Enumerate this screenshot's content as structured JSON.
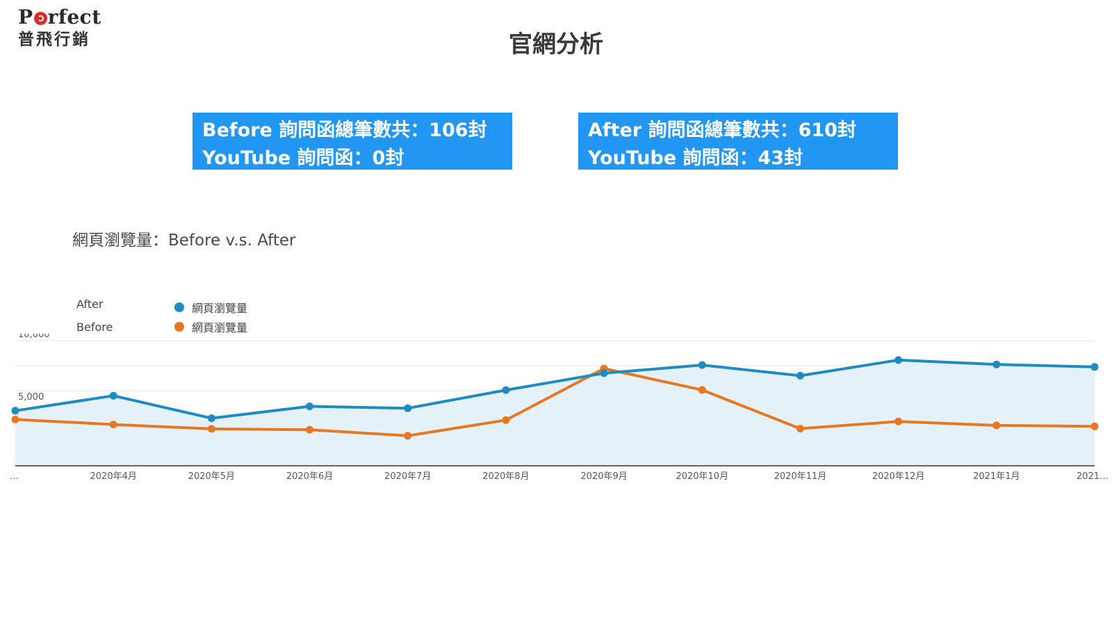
{
  "logo": {
    "word_before_dot": "P",
    "word_after_dot": "rfect",
    "chinese": "普飛行銷"
  },
  "page_title": "官網分析",
  "before_box": {
    "line1": "Before 詢問函總筆數共：106封",
    "line2": "YouTube 詢問函：0封"
  },
  "after_box": {
    "line1": "After 詢問函總筆數共：610封",
    "line2": "YouTube 詢問函：43封"
  },
  "colors": {
    "after": "#1f8bc3",
    "before": "#e87722",
    "box": "#2196f3",
    "area": "#e4f1f8"
  },
  "chart_data": {
    "type": "line",
    "title": "網頁瀏覽量：Before v.s. After",
    "legend": [
      {
        "group": "After",
        "label": "網頁瀏覽量"
      },
      {
        "group": "Before",
        "label": "網頁瀏覽量"
      }
    ],
    "categories": [
      "…",
      "2020年4月",
      "2020年5月",
      "2020年6月",
      "2020年7月",
      "2020年8月",
      "2020年9月",
      "2020年10月",
      "2020年11月",
      "2020年12月",
      "2021年1月",
      "2021…"
    ],
    "series": [
      {
        "name": "After",
        "values": [
          4400,
          5600,
          3800,
          4750,
          4600,
          6050,
          7400,
          8050,
          7200,
          8450,
          8100,
          7900
        ]
      },
      {
        "name": "Before",
        "values": [
          3700,
          3300,
          2950,
          2880,
          2400,
          3650,
          7770,
          6060,
          2970,
          3540,
          3230,
          3150
        ]
      }
    ],
    "ylim": [
      0,
      10000
    ],
    "yticks": [
      10000,
      5000
    ],
    "ytick_labels": [
      "10,000",
      "5,000"
    ],
    "grid": true,
    "area_fill_series": "After",
    "legend_position": "top-left"
  }
}
